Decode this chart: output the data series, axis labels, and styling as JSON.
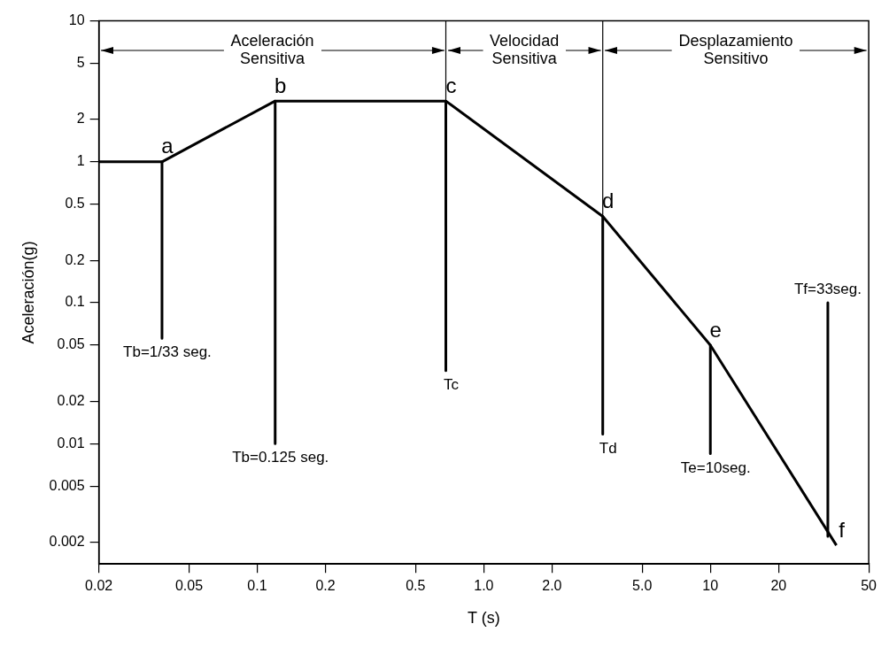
{
  "chart_data": {
    "type": "line",
    "xlabel": "T (s)",
    "ylabel": "Aceleración(g)",
    "log": "xy",
    "grid": false,
    "legend": false,
    "marker": "none",
    "line_style": "solid",
    "xlim": [
      0.02,
      50
    ],
    "xticks": [
      0.02,
      0.05,
      0.1,
      0.2,
      0.5,
      {
        "value": 1,
        "label": "1.0"
      },
      {
        "value": 2,
        "label": "2.0"
      },
      {
        "value": 5,
        "label": "5.0"
      },
      10,
      20,
      50
    ],
    "ylim": [
      0.0014,
      10
    ],
    "yticks": [
      0.002,
      0.005,
      0.01,
      0.02,
      0.05,
      0.1,
      0.2,
      0.5,
      1,
      2,
      5,
      10
    ],
    "series": [
      {
        "color": "#000000",
        "x": [
          0.02,
          0.038,
          0.12,
          0.68,
          3.35,
          10,
          36
        ],
        "values": [
          1,
          1,
          2.7,
          2.7,
          0.41,
          0.05,
          0.0019
        ]
      },
      {
        "color": "#000000",
        "x": [
          0.038,
          0.038
        ],
        "values": [
          1,
          0.056
        ]
      },
      {
        "color": "#000000",
        "x": [
          0.12,
          0.12
        ],
        "values": [
          2.7,
          0.01
        ]
      },
      {
        "color": "#000000",
        "x": [
          0.68,
          0.68
        ],
        "values": [
          2.7,
          0.033
        ]
      },
      {
        "color": "#000000",
        "x": [
          3.35,
          3.35
        ],
        "values": [
          0.41,
          0.0117
        ]
      },
      {
        "color": "#000000",
        "x": [
          10,
          10
        ],
        "values": [
          0.05,
          0.0085
        ]
      },
      {
        "color": "#000000",
        "x": [
          33,
          33
        ],
        "values": [
          0.1,
          0.0022
        ]
      }
    ],
    "ref_lines": [
      {
        "axis": "x",
        "value": 0.68,
        "color": "#000000"
      },
      {
        "axis": "x",
        "value": 3.35,
        "color": "#000000"
      }
    ],
    "annotations": [
      {
        "text": "Aceleración\nSensitiva",
        "x": 0.68,
        "y": 6.2
      },
      {
        "text": "Velocidad\nSensitiva",
        "x": 3.35,
        "y": 6.2
      },
      "Desplazamiento\nSensitivo",
      {
        "text": "a",
        "x": 0.038,
        "y": 1
      },
      {
        "text": "b",
        "x": 0.12,
        "y": 2.7
      },
      {
        "text": "c",
        "x": 0.68,
        "y": 2.7
      },
      {
        "text": "d",
        "x": 3.35,
        "y": 0.41
      },
      {
        "text": "e",
        "x": 10,
        "y": 0.05
      },
      {
        "text": "f",
        "x": 36,
        "y": 0.0019
      },
      {
        "text": "Tb=1/33 seg.",
        "x": 0.038,
        "y": 0.056
      },
      {
        "text": "Tb=0.125 seg.",
        "x": 0.12,
        "y": 0.01
      },
      {
        "text": "Tc",
        "x": 0.68,
        "y": 0.033
      },
      {
        "text": "Td",
        "x": 3.35,
        "y": 0.0117
      },
      {
        "text": "Te=10seg.",
        "x": 10,
        "y": 0.0085
      },
      {
        "text": "Tf=33seg.",
        "x": 33,
        "y": 0.1
      }
    ]
  }
}
